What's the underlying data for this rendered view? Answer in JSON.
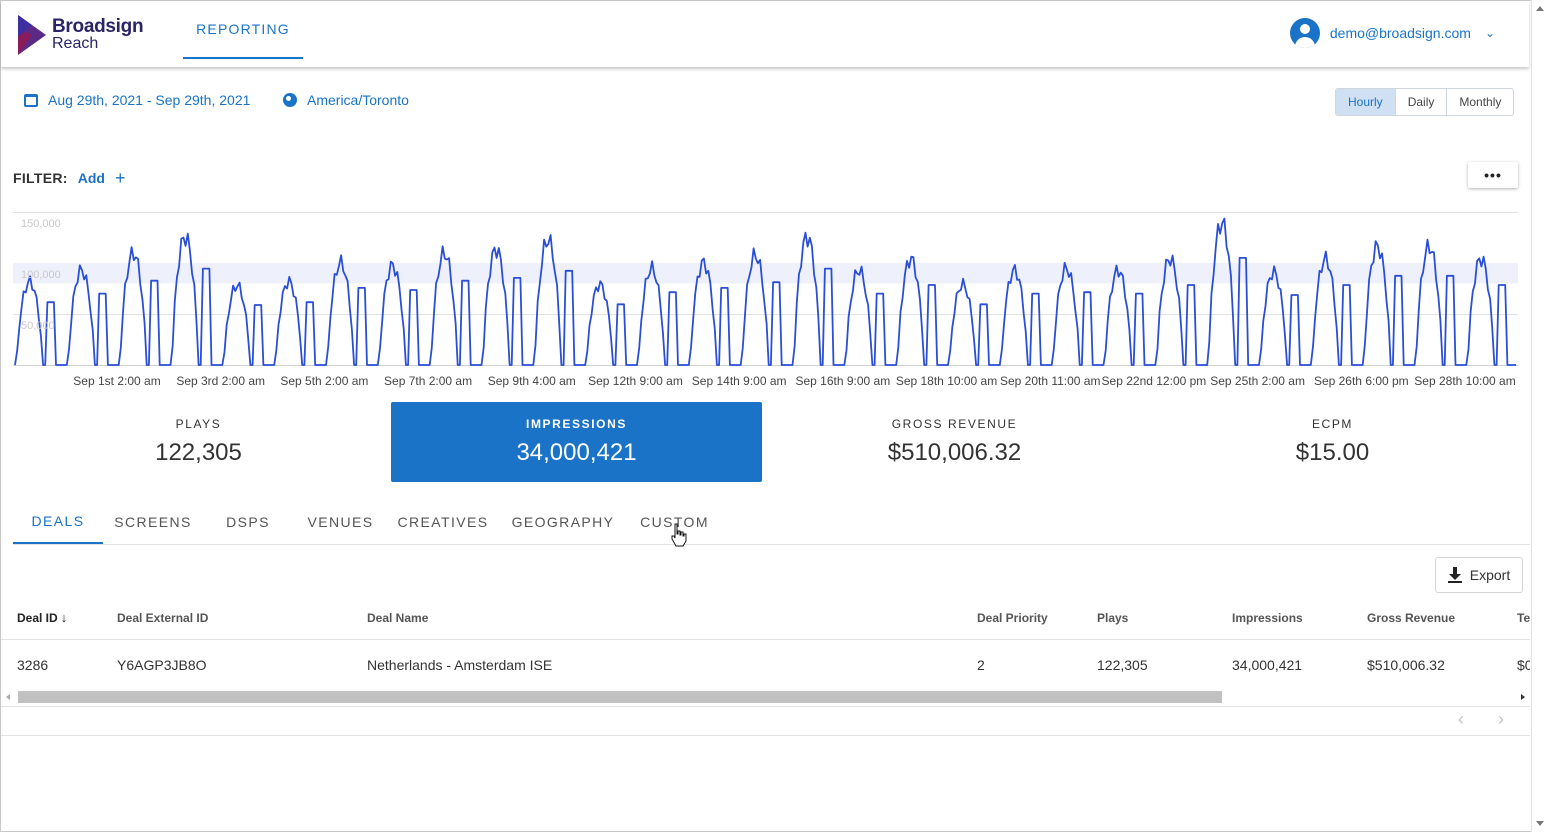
{
  "header": {
    "logo_line1": "Broadsign",
    "logo_line2": "Reach",
    "nav_tab": "REPORTING",
    "user_email": "demo@broadsign.com",
    "colors": {
      "brand": "#2b2466",
      "accent": "#1a73c7"
    }
  },
  "toolbar": {
    "date_range": "Aug 29th, 2021 - Sep 29th, 2021",
    "timezone": "America/Toronto",
    "granularity": {
      "options": [
        "Hourly",
        "Daily",
        "Monthly"
      ],
      "selected": "Hourly"
    }
  },
  "filter": {
    "label": "FILTER:",
    "add_label": "Add",
    "plus": "+",
    "more": "•••"
  },
  "chart_data": {
    "type": "line",
    "color": "#2a4fd6",
    "ylim": [
      0,
      150000
    ],
    "y_ticks": [
      {
        "value": 150000,
        "label": "150,000"
      },
      {
        "value": 100000,
        "label": "100,000"
      },
      {
        "value": 50000,
        "label": "50,000"
      }
    ],
    "x_ticks": [
      "Sep 1st 2:00 am",
      "Sep 3rd 2:00 am",
      "Sep 5th 2:00 am",
      "Sep 7th 2:00 am",
      "Sep 9th 4:00 am",
      "Sep 12th 9:00 am",
      "Sep 14th 9:00 am",
      "Sep 16th 9:00 am",
      "Sep 18th 10:00 am",
      "Sep 20th 11:00 am",
      "Sep 22nd 12:00 pm",
      "Sep 25th 2:00 am",
      "Sep 26th 6:00 pm",
      "Sep 28th 10:00 am"
    ],
    "daily_peaks": [
      88000,
      100000,
      118000,
      135000,
      84000,
      88000,
      108000,
      105000,
      118000,
      122000,
      132000,
      85000,
      102000,
      108000,
      116000,
      135000,
      100000,
      112000,
      85000,
      100000,
      102000,
      100000,
      112000,
      150000,
      98000,
      112000,
      125000,
      125000,
      112000
    ],
    "grid": true
  },
  "metrics": [
    {
      "label": "PLAYS",
      "value": "122,305",
      "selected": false
    },
    {
      "label": "IMPRESSIONS",
      "value": "34,000,421",
      "selected": true
    },
    {
      "label": "GROSS REVENUE",
      "value": "$510,006.32",
      "selected": false
    },
    {
      "label": "ECPM",
      "value": "$15.00",
      "selected": false
    }
  ],
  "tabs": [
    "DEALS",
    "SCREENS",
    "DSPS",
    "VENUES",
    "CREATIVES",
    "GEOGRAPHY",
    "CUSTOM"
  ],
  "active_tab": "DEALS",
  "export_label": "Export",
  "table": {
    "columns": [
      "Deal ID",
      "Deal External ID",
      "Deal Name",
      "Deal Priority",
      "Plays",
      "Impressions",
      "Gross Revenue",
      "Te"
    ],
    "sort_indicator": "↓",
    "rows": [
      [
        "3286",
        "Y6AGP3JB8O",
        "Netherlands - Amsterdam ISE",
        "2",
        "122,305",
        "34,000,421",
        "$510,006.32",
        "$0"
      ]
    ]
  },
  "pager": {
    "prev": "‹",
    "next": "›"
  }
}
